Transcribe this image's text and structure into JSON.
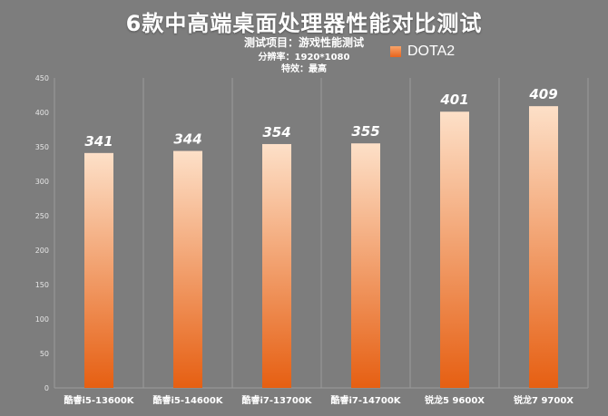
{
  "chart_data": {
    "type": "bar",
    "title": "6款中高端桌面处理器性能对比测试",
    "subtitle_lines": [
      "测试项目：游戏性能测试",
      "分辨率：1920*1080",
      "特效：最高"
    ],
    "categories": [
      "酷睿i5-13600K",
      "酷睿i5-14600K",
      "酷睿i7-13700K",
      "酷睿i7-14700K",
      "锐龙5 9600X",
      "锐龙7 9700X"
    ],
    "series": [
      {
        "name": "DOTA2",
        "values": [
          341,
          344,
          354,
          355,
          401,
          409
        ]
      }
    ],
    "ylim": [
      0,
      450
    ],
    "yticks": [
      0,
      50,
      100,
      150,
      200,
      250,
      300,
      350,
      400,
      450
    ],
    "grid": "vertical category separators",
    "legend": "top-right",
    "colors": {
      "bar_top": "#fde0c8",
      "bar_bottom": "#e65f12",
      "background": "#7d7d7d"
    }
  }
}
